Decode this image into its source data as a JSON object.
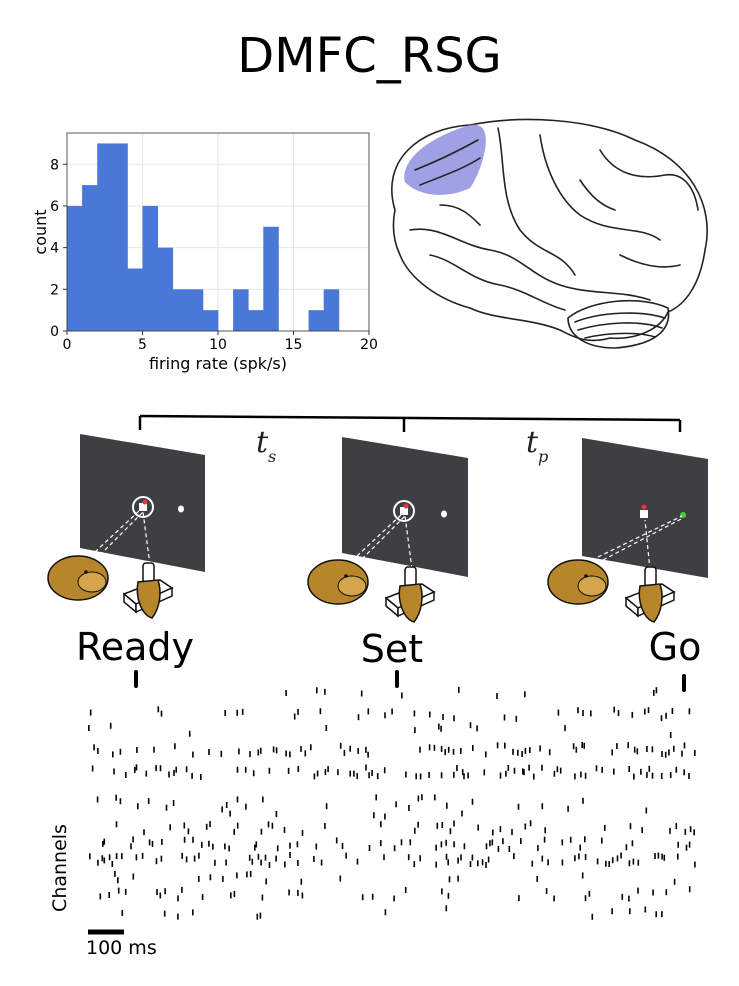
{
  "title": "DMFC_RSG",
  "chart_data": {
    "type": "bar",
    "title": "",
    "xlabel": "firing rate (spk/s)",
    "ylabel": "count",
    "bin_width": 1,
    "bin_starts": [
      0,
      1,
      2,
      3,
      4,
      5,
      6,
      7,
      8,
      9,
      10,
      11,
      12,
      13,
      14,
      15,
      16,
      17
    ],
    "values": [
      6,
      7,
      9,
      9,
      3,
      6,
      4,
      2,
      2,
      1,
      0,
      2,
      1,
      5,
      0,
      0,
      1,
      2
    ],
    "xlim": [
      0,
      20
    ],
    "ylim": [
      0,
      9.5
    ],
    "xticks": [
      "0",
      "5",
      "10",
      "15",
      "20"
    ],
    "yticks": [
      "0",
      "2",
      "4",
      "6",
      "8"
    ],
    "bar_color": "#4a78d6",
    "grid": true
  },
  "intervals": {
    "ts": "t",
    "ts_sub": "s",
    "tp": "t",
    "tp_sub": "p"
  },
  "events": [
    "Ready",
    "Set",
    "Go"
  ],
  "raster": {
    "ylabel": "Channels",
    "scale_label": "100 ms"
  },
  "colors": {
    "highlight": "#8f8fe0",
    "monkey": "#b8862a",
    "screen": "#3d3f42"
  }
}
